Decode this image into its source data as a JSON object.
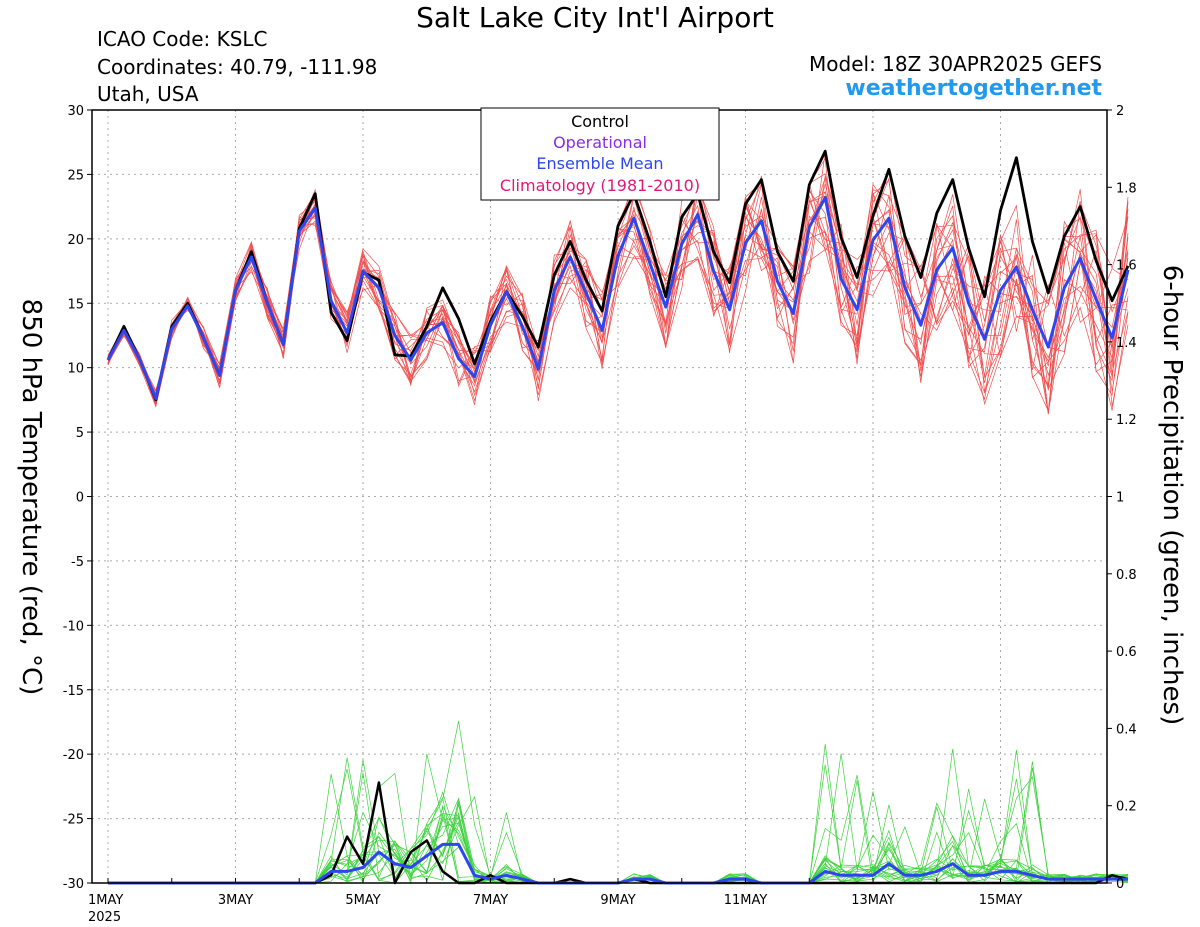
{
  "header": {
    "title": "Salt Lake City Int'l Airport",
    "icao": "ICAO Code: KSLC",
    "coordinates": "Coordinates: 40.79, -111.98",
    "location": "Utah, USA",
    "model": "Model: 18Z 30APR2025 GEFS",
    "website": "weathertogether.net"
  },
  "legend": {
    "position": "top-center",
    "items": [
      {
        "label": "Control",
        "color": "#000000"
      },
      {
        "label": "Operational",
        "color": "#8a2be2"
      },
      {
        "label": "Ensemble Mean",
        "color": "#2d46ee"
      },
      {
        "label": "Climatology (1981-2010)",
        "color": "#e0187c"
      }
    ]
  },
  "chart_data": {
    "type": "line",
    "title": "Salt Lake City Int'l Airport",
    "ylabel": "850 hPa Temperature (red, °C)",
    "y2label": "6-hour Precipitation (green, inches)",
    "grid": true,
    "x_step": "6 hours",
    "xlim_days": [
      0,
      15.75
    ],
    "ylim": [
      -30,
      30
    ],
    "y2lim": [
      0,
      2
    ],
    "yticks": [
      "30",
      "25",
      "20",
      "15",
      "10",
      "5",
      "0",
      "-5",
      "-10",
      "-15",
      "-20",
      "-25",
      "-30"
    ],
    "y2ticks": [
      "2",
      "1.8",
      "1.6",
      "1.4",
      "1.2",
      "1",
      "0.8",
      "0.6",
      "0.4",
      "0.2",
      "0"
    ],
    "xticks": [
      {
        "label": "1MAY",
        "sub": "2025",
        "day": 0
      },
      {
        "label": "3MAY",
        "day": 2
      },
      {
        "label": "5MAY",
        "day": 4
      },
      {
        "label": "7MAY",
        "day": 6
      },
      {
        "label": "9MAY",
        "day": 8
      },
      {
        "label": "11MAY",
        "day": 10
      },
      {
        "label": "13MAY",
        "day": 12
      },
      {
        "label": "15MAY",
        "day": 14
      }
    ],
    "colors": {
      "members_temp": "#f05050",
      "members_precip": "#3ed23e",
      "control": "#000000",
      "mean": "#2d46ee",
      "grid": "#aaaaaa"
    },
    "series": [
      {
        "name": "Control",
        "quantity": "temperature",
        "values": [
          10.6,
          13.2,
          10.6,
          7.5,
          13.2,
          15,
          12.3,
          9.4,
          16,
          19,
          15,
          11.8,
          20.8,
          23.5,
          14.3,
          12.1,
          17.4,
          16.8,
          11,
          10.9,
          13.2,
          16.2,
          13.8,
          10.3,
          13.6,
          15.9,
          14,
          11.6,
          17.2,
          19.8,
          16.8,
          14.4,
          21,
          23.5,
          19.8,
          15.5,
          21.7,
          23.5,
          19,
          16.6,
          22.7,
          24.6,
          19,
          16.7,
          24.2,
          26.8,
          20.1,
          17,
          21.8,
          25.4,
          20.2,
          17,
          22,
          24.6,
          19.3,
          15.5,
          22.2,
          26.3,
          19.8,
          15.8,
          20.2,
          22.5,
          18.3,
          15.2,
          17.9
        ]
      },
      {
        "name": "Ensemble Mean",
        "quantity": "temperature",
        "values": [
          10.6,
          12.9,
          10.6,
          7.6,
          13,
          14.8,
          12.3,
          9.4,
          16,
          18.6,
          15,
          11.8,
          20.6,
          22.4,
          15.2,
          12.7,
          17.5,
          16.2,
          12.5,
          10.6,
          12.7,
          13.5,
          10.7,
          9.3,
          13.3,
          15.9,
          13.2,
          9.9,
          16,
          18.6,
          15.8,
          12.9,
          18.7,
          21.6,
          18.1,
          14.7,
          19.6,
          21.9,
          17.5,
          14.5,
          19.7,
          21.4,
          16.7,
          14.2,
          20.9,
          23.2,
          16.9,
          14.5,
          19.9,
          21.6,
          16.2,
          13.3,
          17.6,
          19.3,
          15,
          12.2,
          16,
          17.8,
          14.5,
          11.6,
          16.2,
          18.5,
          15.3,
          12.3,
          17.6
        ]
      },
      {
        "name": "Control",
        "quantity": "precipitation",
        "values": [
          0,
          0,
          0,
          0,
          0,
          0,
          0,
          0,
          0,
          0,
          0,
          0,
          0,
          0,
          0.02,
          0.12,
          0.05,
          0.26,
          0,
          0.08,
          0.11,
          0.03,
          0,
          0,
          0.02,
          0,
          0,
          0,
          0,
          0.01,
          0,
          0,
          0,
          0.01,
          0,
          0,
          0,
          0,
          0,
          0,
          0,
          0,
          0,
          0,
          0,
          0,
          0,
          0,
          0,
          0,
          0,
          0,
          0,
          0,
          0,
          0,
          0,
          0,
          0,
          0,
          0,
          0,
          0,
          0.02,
          0.01
        ]
      },
      {
        "name": "Ensemble Mean",
        "quantity": "precipitation",
        "values": [
          0,
          0,
          0,
          0,
          0,
          0,
          0,
          0,
          0,
          0,
          0,
          0,
          0,
          0,
          0.03,
          0.03,
          0.04,
          0.08,
          0.05,
          0.04,
          0.07,
          0.1,
          0.1,
          0.02,
          0.01,
          0.02,
          0.01,
          0,
          0,
          0,
          0,
          0,
          0,
          0.01,
          0.01,
          0,
          0,
          0,
          0,
          0.01,
          0.01,
          0,
          0,
          0,
          0,
          0.03,
          0.02,
          0.02,
          0.02,
          0.05,
          0.02,
          0.02,
          0.03,
          0.05,
          0.02,
          0.02,
          0.03,
          0.03,
          0.02,
          0.01,
          0.01,
          0.01,
          0.01,
          0.01,
          0.01
        ]
      }
    ]
  }
}
